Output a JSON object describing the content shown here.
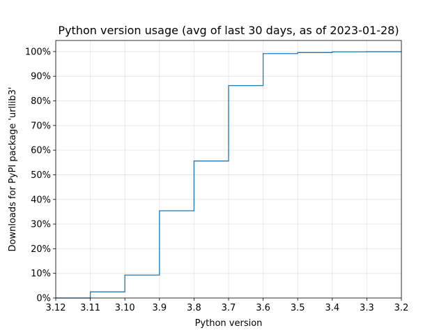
{
  "chart_data": {
    "type": "line",
    "step": "post",
    "title": "Python version usage (avg of last 30 days, as of 2023-01-28)",
    "xlabel": "Python version",
    "ylabel": "Downloads for PyPI package 'urllib3'",
    "categories": [
      "3.12",
      "3.11",
      "3.10",
      "3.9",
      "3.8",
      "3.7",
      "3.6",
      "3.5",
      "3.4",
      "3.3",
      "3.2"
    ],
    "y_ticks": [
      0,
      10,
      20,
      30,
      40,
      50,
      60,
      70,
      80,
      90,
      100
    ],
    "y_tick_labels": [
      "0%",
      "10%",
      "20%",
      "30%",
      "40%",
      "50%",
      "60%",
      "70%",
      "80%",
      "90%",
      "100%"
    ],
    "ylim": [
      0,
      104.5
    ],
    "grid": true,
    "legend": "none",
    "series": [
      {
        "color": "#1f77b4",
        "values": [
          0,
          2.5,
          9.3,
          35.4,
          55.6,
          86.2,
          99.2,
          99.6,
          99.9,
          99.95,
          100
        ]
      }
    ]
  }
}
